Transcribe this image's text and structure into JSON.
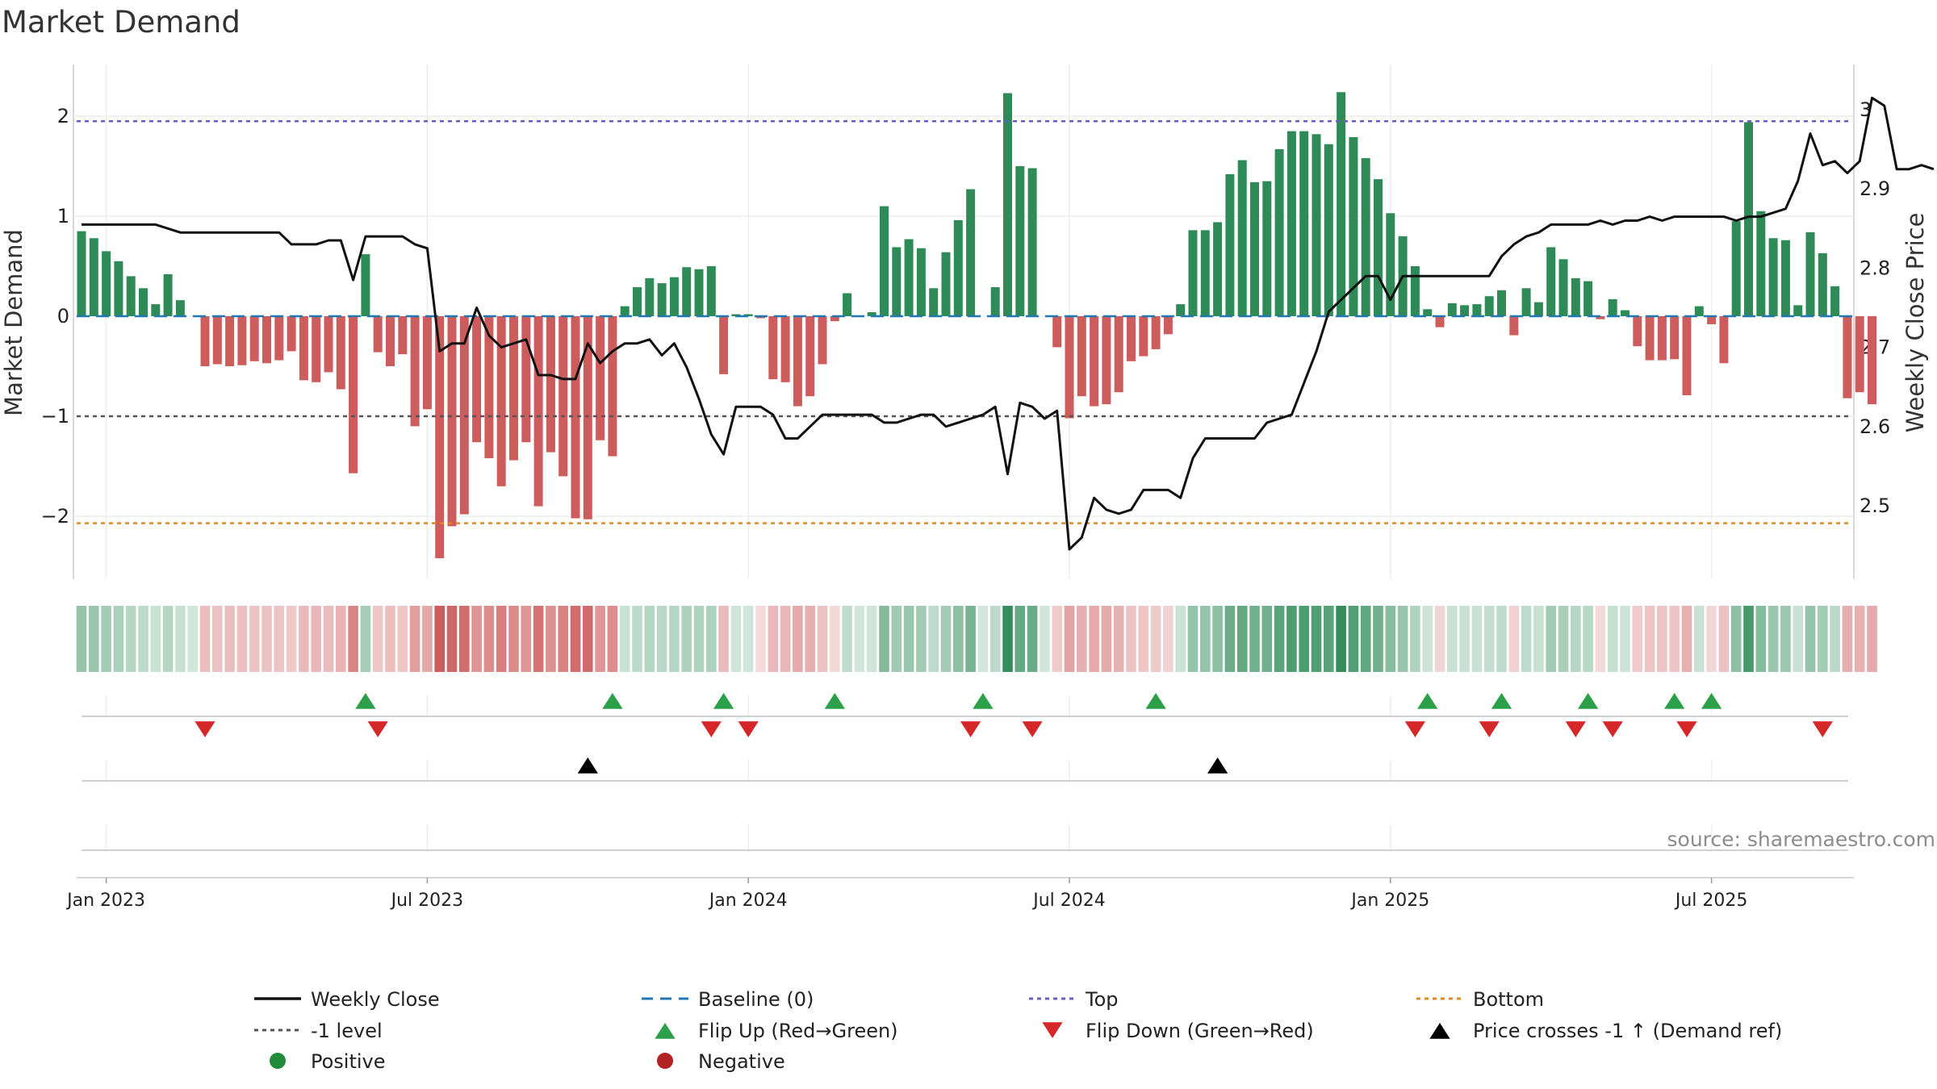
{
  "chart_data": {
    "type": "bar",
    "title": "Market Demand",
    "ylabel": "Market Demand",
    "y2label": "Weekly Close Price",
    "ylim": [
      -2.6,
      2.5
    ],
    "y2lim": [
      2.43,
      3.04
    ],
    "yticks": [
      2,
      1,
      0,
      -1,
      -2
    ],
    "ytick_labels": [
      "2",
      "1",
      "0",
      "−1",
      "−2"
    ],
    "y2ticks": [
      3,
      2.9,
      2.8,
      2.7,
      2.6,
      2.5
    ],
    "y2tick_labels": [
      "3",
      "2.9",
      "2.8",
      "2.7",
      "2.6",
      "2.5"
    ],
    "xticks": [
      {
        "label": "Jan 2023",
        "week": 2
      },
      {
        "label": "Jul 2023",
        "week": 28
      },
      {
        "label": "Jan 2024",
        "week": 54
      },
      {
        "label": "Jul 2024",
        "week": 80
      },
      {
        "label": "Jan 2025",
        "week": 106
      },
      {
        "label": "Jul 2025",
        "week": 132
      }
    ],
    "reference_lines": {
      "top": 1.95,
      "minus_one": -1,
      "bottom": -2.07,
      "baseline": 0
    },
    "demand": [
      0.85,
      0.78,
      0.65,
      0.55,
      0.4,
      0.28,
      0.12,
      0.42,
      0.16,
      0,
      -0.5,
      -0.48,
      -0.5,
      -0.49,
      -0.45,
      -0.47,
      -0.44,
      -0.35,
      -0.64,
      -0.66,
      -0.56,
      -0.73,
      -1.57,
      0.62,
      -0.36,
      -0.5,
      -0.38,
      -1.1,
      -0.93,
      -2.42,
      -2.1,
      -1.98,
      -1.26,
      -1.42,
      -1.7,
      -1.44,
      -1.26,
      -1.9,
      -1.36,
      -1.6,
      -2.02,
      -2.03,
      -1.24,
      -1.4,
      0.1,
      0.29,
      0.38,
      0.33,
      0.39,
      0.49,
      0.47,
      0.5,
      -0.58,
      0.02,
      0.02,
      -0.02,
      -0.63,
      -0.66,
      -0.9,
      -0.8,
      -0.48,
      -0.05,
      0.23,
      0,
      0.04,
      1.1,
      0.69,
      0.77,
      0.68,
      0.28,
      0.64,
      0.96,
      1.27,
      0,
      0.29,
      2.23,
      1.5,
      1.48,
      0,
      -0.31,
      -1.02,
      -0.8,
      -0.9,
      -0.88,
      -0.76,
      -0.45,
      -0.4,
      -0.33,
      -0.18,
      0.12,
      0.86,
      0.86,
      0.94,
      1.42,
      1.56,
      1.34,
      1.35,
      1.67,
      1.85,
      1.85,
      1.82,
      1.72,
      2.24,
      1.79,
      1.58,
      1.37,
      1.03,
      0.8,
      0.5,
      0.07,
      -0.11,
      0.13,
      0.11,
      0.12,
      0.2,
      0.26,
      -0.19,
      0.28,
      0.14,
      0.69,
      0.57,
      0.38,
      0.35,
      -0.03,
      0.17,
      0.06,
      -0.3,
      -0.44,
      -0.44,
      -0.43,
      -0.79,
      0.1,
      -0.08,
      -0.47,
      0.95,
      1.94,
      1.05,
      0.78,
      0.76,
      0.11,
      0.84,
      0.63,
      0.3,
      -0.82,
      -0.76,
      -0.88
    ],
    "close": [
      2.855,
      2.855,
      2.855,
      2.855,
      2.855,
      2.855,
      2.855,
      2.85,
      2.845,
      2.845,
      2.845,
      2.845,
      2.845,
      2.845,
      2.845,
      2.845,
      2.845,
      2.83,
      2.83,
      2.83,
      2.835,
      2.835,
      2.785,
      2.84,
      2.84,
      2.84,
      2.84,
      2.83,
      2.825,
      2.695,
      2.705,
      2.705,
      2.75,
      2.715,
      2.7,
      2.705,
      2.71,
      2.665,
      2.665,
      2.66,
      2.66,
      2.705,
      2.68,
      2.695,
      2.705,
      2.705,
      2.71,
      2.69,
      2.705,
      2.675,
      2.635,
      2.59,
      2.565,
      2.625,
      2.625,
      2.625,
      2.615,
      2.585,
      2.585,
      2.6,
      2.615,
      2.615,
      2.615,
      2.615,
      2.615,
      2.605,
      2.605,
      2.61,
      2.615,
      2.615,
      2.6,
      2.605,
      2.61,
      2.615,
      2.625,
      2.54,
      2.63,
      2.625,
      2.61,
      2.62,
      2.445,
      2.46,
      2.51,
      2.495,
      2.49,
      2.495,
      2.52,
      2.52,
      2.52,
      2.51,
      2.56,
      2.585,
      2.585,
      2.585,
      2.585,
      2.585,
      2.605,
      2.61,
      2.615,
      2.655,
      2.695,
      2.745,
      2.76,
      2.775,
      2.79,
      2.79,
      2.76,
      2.79,
      2.79,
      2.79,
      2.79,
      2.79,
      2.79,
      2.79,
      2.79,
      2.815,
      2.83,
      2.84,
      2.845,
      2.855,
      2.855,
      2.855,
      2.855,
      2.86,
      2.855,
      2.86,
      2.86,
      2.865,
      2.86,
      2.865,
      2.865,
      2.865,
      2.865,
      2.865,
      2.86,
      2.865,
      2.865,
      2.87,
      2.875,
      2.91,
      2.97,
      2.93,
      2.935,
      2.92,
      2.935,
      3.015,
      3.005,
      2.925,
      2.925,
      2.93,
      2.925
    ],
    "flip_up_weeks": [
      23,
      43,
      52,
      61,
      73,
      87,
      109,
      115,
      122,
      129,
      132
    ],
    "flip_down_weeks": [
      10,
      24,
      51,
      54,
      72,
      77,
      108,
      114,
      121,
      124,
      130,
      141
    ],
    "price_cross_weeks": [
      41,
      92
    ],
    "legend": [
      {
        "label": "Weekly Close",
        "kind": "line",
        "color": "#111111"
      },
      {
        "label": "Baseline (0)",
        "kind": "dash",
        "color": "#1f77b4"
      },
      {
        "label": "Top",
        "kind": "dot",
        "color": "#6a5acd"
      },
      {
        "label": "Bottom",
        "kind": "dot",
        "color": "#e08a1e"
      },
      {
        "label": "-1 level",
        "kind": "dot",
        "color": "#555555"
      },
      {
        "label": "Flip Up (Red→Green)",
        "kind": "tri-up",
        "color": "#2ca049"
      },
      {
        "label": "Flip Down (Green→Red)",
        "kind": "tri-down",
        "color": "#d62728"
      },
      {
        "label": "Price crosses -1 ↑ (Demand ref)",
        "kind": "tri-up",
        "color": "#000000"
      },
      {
        "label": "Positive",
        "kind": "dot-marker",
        "color": "#228b3a"
      },
      {
        "label": "Negative",
        "kind": "dot-marker",
        "color": "#b22222"
      }
    ],
    "source": "source: sharemaestro.com"
  },
  "colors": {
    "positive": "#2e8b57",
    "negative": "#cd5c5c",
    "close": "#111111",
    "top": "#6a5acd",
    "bottom": "#e08a1e",
    "minus_one": "#555555",
    "baseline": "#1f77b4",
    "flip_up": "#2ca049",
    "flip_down": "#d62728",
    "cross": "#000000"
  }
}
